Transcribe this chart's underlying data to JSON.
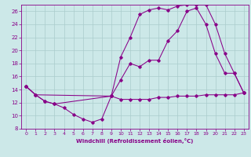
{
  "background_color": "#cce8e8",
  "grid_color": "#aacccc",
  "line_color": "#880088",
  "xlabel": "Windchill (Refroidissement éolien,°C)",
  "xlim": [
    -0.5,
    23.5
  ],
  "ylim": [
    8,
    27
  ],
  "yticks": [
    8,
    10,
    12,
    14,
    16,
    18,
    20,
    22,
    24,
    26
  ],
  "xticks": [
    0,
    1,
    2,
    3,
    4,
    5,
    6,
    7,
    8,
    9,
    10,
    11,
    12,
    13,
    14,
    15,
    16,
    17,
    18,
    19,
    20,
    21,
    22,
    23
  ],
  "series1_x": [
    0,
    1,
    2,
    3,
    4,
    5,
    6,
    7,
    8,
    9,
    10,
    11,
    12,
    13,
    14,
    15,
    16,
    17,
    18,
    19,
    20,
    21,
    22,
    23
  ],
  "series1_y": [
    14.5,
    13.2,
    12.2,
    11.8,
    11.2,
    10.2,
    9.5,
    9.0,
    9.5,
    13.0,
    12.5,
    12.5,
    12.5,
    12.5,
    12.8,
    12.8,
    13.0,
    13.0,
    13.0,
    13.2,
    13.2,
    13.2,
    13.2,
    13.5
  ],
  "series2_x": [
    0,
    1,
    2,
    3,
    9,
    10,
    11,
    12,
    13,
    14,
    15,
    16,
    17,
    18,
    19,
    20,
    21,
    22,
    23
  ],
  "series2_y": [
    14.5,
    13.2,
    12.2,
    11.8,
    13.0,
    15.5,
    18.0,
    17.5,
    18.5,
    18.5,
    21.5,
    23.0,
    26.0,
    26.5,
    24.0,
    19.5,
    16.5,
    16.5,
    13.5
  ],
  "series3_x": [
    0,
    1,
    9,
    10,
    11,
    12,
    13,
    14,
    15,
    16,
    17,
    18,
    19,
    20,
    21,
    22,
    23
  ],
  "series3_y": [
    14.5,
    13.2,
    13.0,
    19.0,
    22.0,
    25.5,
    26.2,
    26.5,
    26.2,
    26.8,
    27.0,
    27.0,
    27.0,
    24.0,
    19.5,
    16.5,
    13.5
  ]
}
